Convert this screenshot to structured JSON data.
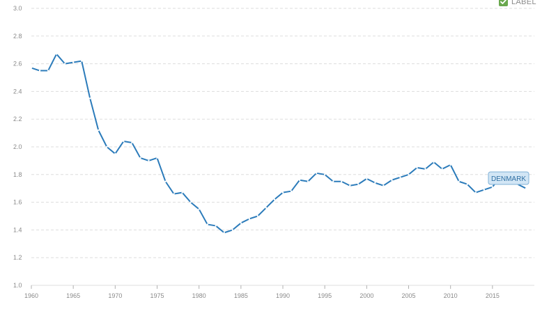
{
  "legend": {
    "label": "LABEL",
    "checked": true,
    "check_icon": "checkmark-icon"
  },
  "chart_data": {
    "type": "line",
    "title": "",
    "xlabel": "",
    "ylabel": "",
    "xlim": [
      1960,
      2020
    ],
    "ylim": [
      1.0,
      3.0
    ],
    "grid": true,
    "x_ticks": [
      "1960",
      "1965",
      "1970",
      "1975",
      "1980",
      "1985",
      "1990",
      "1995",
      "2000",
      "2005",
      "2010",
      "2015"
    ],
    "y_ticks": [
      "1.0",
      "1.2",
      "1.4",
      "1.6",
      "1.8",
      "2.0",
      "2.2",
      "2.4",
      "2.6",
      "2.8",
      "3.0"
    ],
    "series": [
      {
        "name": "DENMARK",
        "color": "#2b7bba",
        "x": [
          1960,
          1961,
          1962,
          1963,
          1964,
          1965,
          1966,
          1967,
          1968,
          1969,
          1970,
          1971,
          1972,
          1973,
          1974,
          1975,
          1976,
          1977,
          1978,
          1979,
          1980,
          1981,
          1982,
          1983,
          1984,
          1985,
          1986,
          1987,
          1988,
          1989,
          1990,
          1991,
          1992,
          1993,
          1994,
          1995,
          1996,
          1997,
          1998,
          1999,
          2000,
          2001,
          2002,
          2003,
          2004,
          2005,
          2006,
          2007,
          2008,
          2009,
          2010,
          2011,
          2012,
          2013,
          2014,
          2015,
          2016,
          2017,
          2018,
          2019
        ],
        "values": [
          2.57,
          2.55,
          2.55,
          2.67,
          2.6,
          2.61,
          2.62,
          2.35,
          2.12,
          2.0,
          1.95,
          2.04,
          2.03,
          1.92,
          1.9,
          1.92,
          1.75,
          1.66,
          1.67,
          1.6,
          1.55,
          1.44,
          1.43,
          1.38,
          1.4,
          1.45,
          1.48,
          1.5,
          1.56,
          1.62,
          1.67,
          1.68,
          1.76,
          1.75,
          1.81,
          1.8,
          1.75,
          1.75,
          1.72,
          1.73,
          1.77,
          1.74,
          1.72,
          1.76,
          1.78,
          1.8,
          1.85,
          1.84,
          1.89,
          1.84,
          1.87,
          1.75,
          1.73,
          1.67,
          1.69,
          1.71,
          1.79,
          1.75,
          1.73,
          1.7
        ]
      }
    ]
  }
}
